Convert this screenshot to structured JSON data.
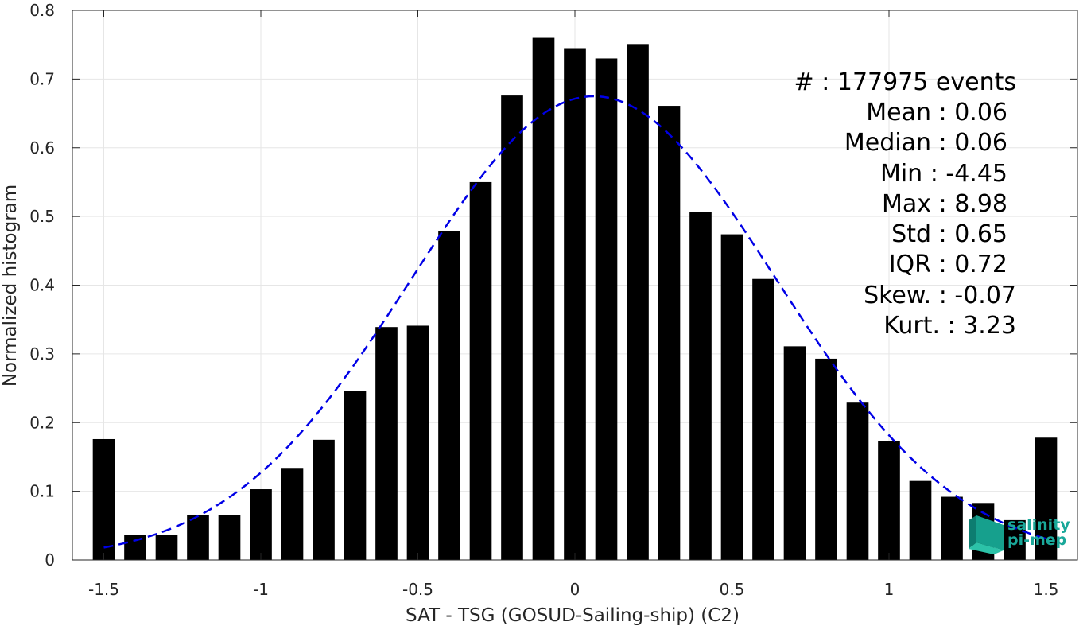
{
  "chart_data": {
    "type": "bar",
    "xlabel": "SAT - TSG (GOSUD-Sailing-ship) (C2)",
    "ylabel": "Normalized histogram",
    "xlim": [
      -1.6,
      1.6
    ],
    "ylim": [
      0,
      0.8
    ],
    "grid": true,
    "x_ticks": [
      -1.5,
      -1,
      -0.5,
      0,
      0.5,
      1,
      1.5
    ],
    "x_tick_labels": [
      "-1.5",
      "-1",
      "-0.5",
      "0",
      "0.5",
      "1",
      "1.5"
    ],
    "y_ticks": [
      0,
      0.1,
      0.2,
      0.3,
      0.4,
      0.5,
      0.6,
      0.7,
      0.8
    ],
    "y_tick_labels": [
      "0",
      "0.1",
      "0.2",
      "0.3",
      "0.4",
      "0.5",
      "0.6",
      "0.7",
      "0.8"
    ],
    "bar_width": 0.07,
    "bins_x": [
      -1.5,
      -1.4,
      -1.3,
      -1.2,
      -1.1,
      -1.0,
      -0.9,
      -0.8,
      -0.7,
      -0.6,
      -0.5,
      -0.4,
      -0.3,
      -0.2,
      -0.1,
      0.0,
      0.1,
      0.2,
      0.3,
      0.4,
      0.5,
      0.6,
      0.7,
      0.8,
      0.9,
      1.0,
      1.1,
      1.2,
      1.3,
      1.4,
      1.5
    ],
    "values": [
      0.176,
      0.037,
      0.037,
      0.066,
      0.065,
      0.103,
      0.134,
      0.175,
      0.246,
      0.339,
      0.341,
      0.479,
      0.55,
      0.676,
      0.76,
      0.745,
      0.73,
      0.751,
      0.661,
      0.506,
      0.474,
      0.409,
      0.311,
      0.293,
      0.229,
      0.173,
      0.115,
      0.092,
      0.083,
      0.058,
      0.178
    ],
    "fit_curve": {
      "style": "dashed",
      "color": "#0000e6",
      "mu": 0.06,
      "sigma": 0.58,
      "peak": 0.675,
      "x_range": [
        -1.5,
        1.5
      ]
    },
    "bar_color": "#000000"
  },
  "stats": {
    "lines": [
      "#  : 177975 events",
      "Mean : 0.06",
      "Median : 0.06",
      "Min : -4.45",
      "Max : 8.98",
      "Std : 0.65",
      "IQR : 0.72",
      "Skew. : -0.07",
      "Kurt. : 3.23"
    ]
  },
  "logo": {
    "line1": "salinity",
    "line2": "pi-mep"
  }
}
